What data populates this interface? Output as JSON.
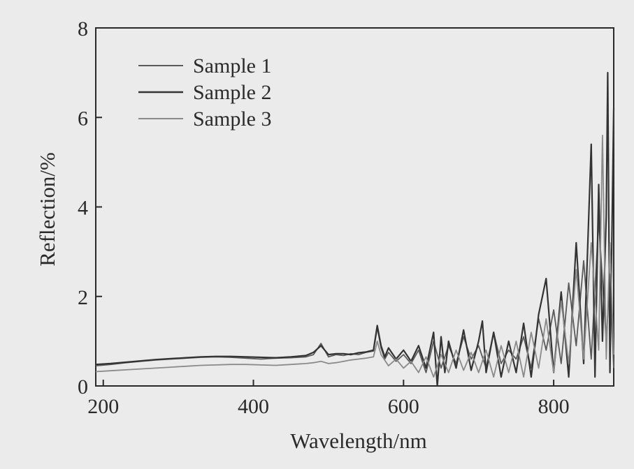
{
  "chart_data": {
    "type": "line",
    "xlabel": "Wavelength/nm",
    "ylabel": "Reflection/%",
    "xlim": [
      190,
      880
    ],
    "ylim": [
      0,
      8
    ],
    "x_ticks": [
      "200",
      "400",
      "600",
      "800"
    ],
    "y_ticks": [
      "0",
      "2",
      "4",
      "6",
      "8"
    ],
    "grid": false,
    "legend_position": "top-left",
    "series": [
      {
        "name": "Sample 1",
        "color": "#5a5a5a",
        "x": [
          190,
          210,
          230,
          250,
          270,
          290,
          310,
          330,
          350,
          370,
          390,
          410,
          430,
          450,
          470,
          480,
          490,
          500,
          510,
          520,
          530,
          540,
          550,
          560,
          565,
          570,
          575,
          580,
          590,
          600,
          610,
          620,
          630,
          640,
          650,
          660,
          670,
          680,
          690,
          700,
          710,
          720,
          730,
          740,
          750,
          760,
          770,
          780,
          790,
          800,
          810,
          820,
          830,
          840,
          850,
          860,
          870,
          875,
          880
        ],
        "y": [
          0.45,
          0.48,
          0.52,
          0.55,
          0.58,
          0.6,
          0.62,
          0.64,
          0.65,
          0.64,
          0.62,
          0.6,
          0.62,
          0.63,
          0.65,
          0.7,
          0.95,
          0.65,
          0.7,
          0.68,
          0.72,
          0.7,
          0.75,
          0.78,
          1.3,
          0.85,
          0.6,
          0.75,
          0.55,
          0.7,
          0.5,
          0.8,
          0.3,
          1.0,
          0.4,
          0.9,
          0.5,
          1.1,
          0.6,
          0.9,
          0.4,
          1.2,
          0.5,
          0.8,
          0.6,
          1.1,
          0.4,
          1.5,
          0.8,
          1.7,
          0.5,
          2.3,
          0.9,
          2.8,
          0.6,
          3.7,
          1.0,
          2.5,
          0.4
        ]
      },
      {
        "name": "Sample 2",
        "color": "#333333",
        "x": [
          190,
          210,
          230,
          250,
          270,
          290,
          310,
          330,
          350,
          370,
          390,
          410,
          430,
          450,
          470,
          480,
          490,
          500,
          510,
          520,
          530,
          540,
          550,
          560,
          565,
          570,
          575,
          580,
          590,
          600,
          610,
          620,
          630,
          640,
          645,
          650,
          655,
          660,
          670,
          680,
          690,
          700,
          705,
          710,
          720,
          730,
          740,
          750,
          760,
          770,
          780,
          790,
          800,
          810,
          820,
          830,
          840,
          850,
          855,
          860,
          865,
          870,
          872,
          875,
          880
        ],
        "y": [
          0.48,
          0.5,
          0.53,
          0.56,
          0.59,
          0.61,
          0.63,
          0.65,
          0.66,
          0.66,
          0.65,
          0.64,
          0.63,
          0.65,
          0.68,
          0.75,
          0.9,
          0.7,
          0.72,
          0.72,
          0.7,
          0.74,
          0.76,
          0.8,
          1.35,
          0.9,
          0.65,
          0.85,
          0.6,
          0.8,
          0.55,
          0.9,
          0.4,
          1.2,
          0.0,
          1.1,
          0.3,
          1.0,
          0.4,
          1.25,
          0.35,
          1.0,
          1.45,
          0.3,
          1.2,
          0.2,
          1.0,
          0.3,
          1.4,
          0.2,
          1.6,
          2.4,
          0.3,
          2.1,
          0.2,
          3.2,
          0.5,
          5.4,
          0.2,
          4.5,
          1.0,
          3.8,
          7.0,
          0.3,
          6.2
        ]
      },
      {
        "name": "Sample 3",
        "color": "#8a8a8a",
        "x": [
          190,
          210,
          230,
          250,
          270,
          290,
          310,
          330,
          350,
          370,
          390,
          410,
          430,
          450,
          470,
          480,
          490,
          500,
          510,
          520,
          530,
          540,
          550,
          560,
          565,
          570,
          580,
          590,
          600,
          610,
          620,
          630,
          640,
          650,
          660,
          670,
          680,
          690,
          700,
          710,
          720,
          730,
          740,
          750,
          760,
          770,
          780,
          790,
          800,
          810,
          820,
          830,
          840,
          850,
          860,
          865,
          870,
          875,
          880
        ],
        "y": [
          0.32,
          0.34,
          0.36,
          0.38,
          0.4,
          0.42,
          0.44,
          0.46,
          0.47,
          0.48,
          0.48,
          0.47,
          0.46,
          0.48,
          0.5,
          0.52,
          0.55,
          0.5,
          0.52,
          0.55,
          0.58,
          0.6,
          0.62,
          0.65,
          1.0,
          0.7,
          0.45,
          0.6,
          0.4,
          0.55,
          0.3,
          0.65,
          0.2,
          0.7,
          0.3,
          0.8,
          0.35,
          0.75,
          0.3,
          0.8,
          0.2,
          0.9,
          0.3,
          1.0,
          0.2,
          1.2,
          0.4,
          1.5,
          0.3,
          1.9,
          0.5,
          2.6,
          0.6,
          3.2,
          0.8,
          5.6,
          0.6,
          3.2,
          0.7
        ]
      }
    ]
  }
}
